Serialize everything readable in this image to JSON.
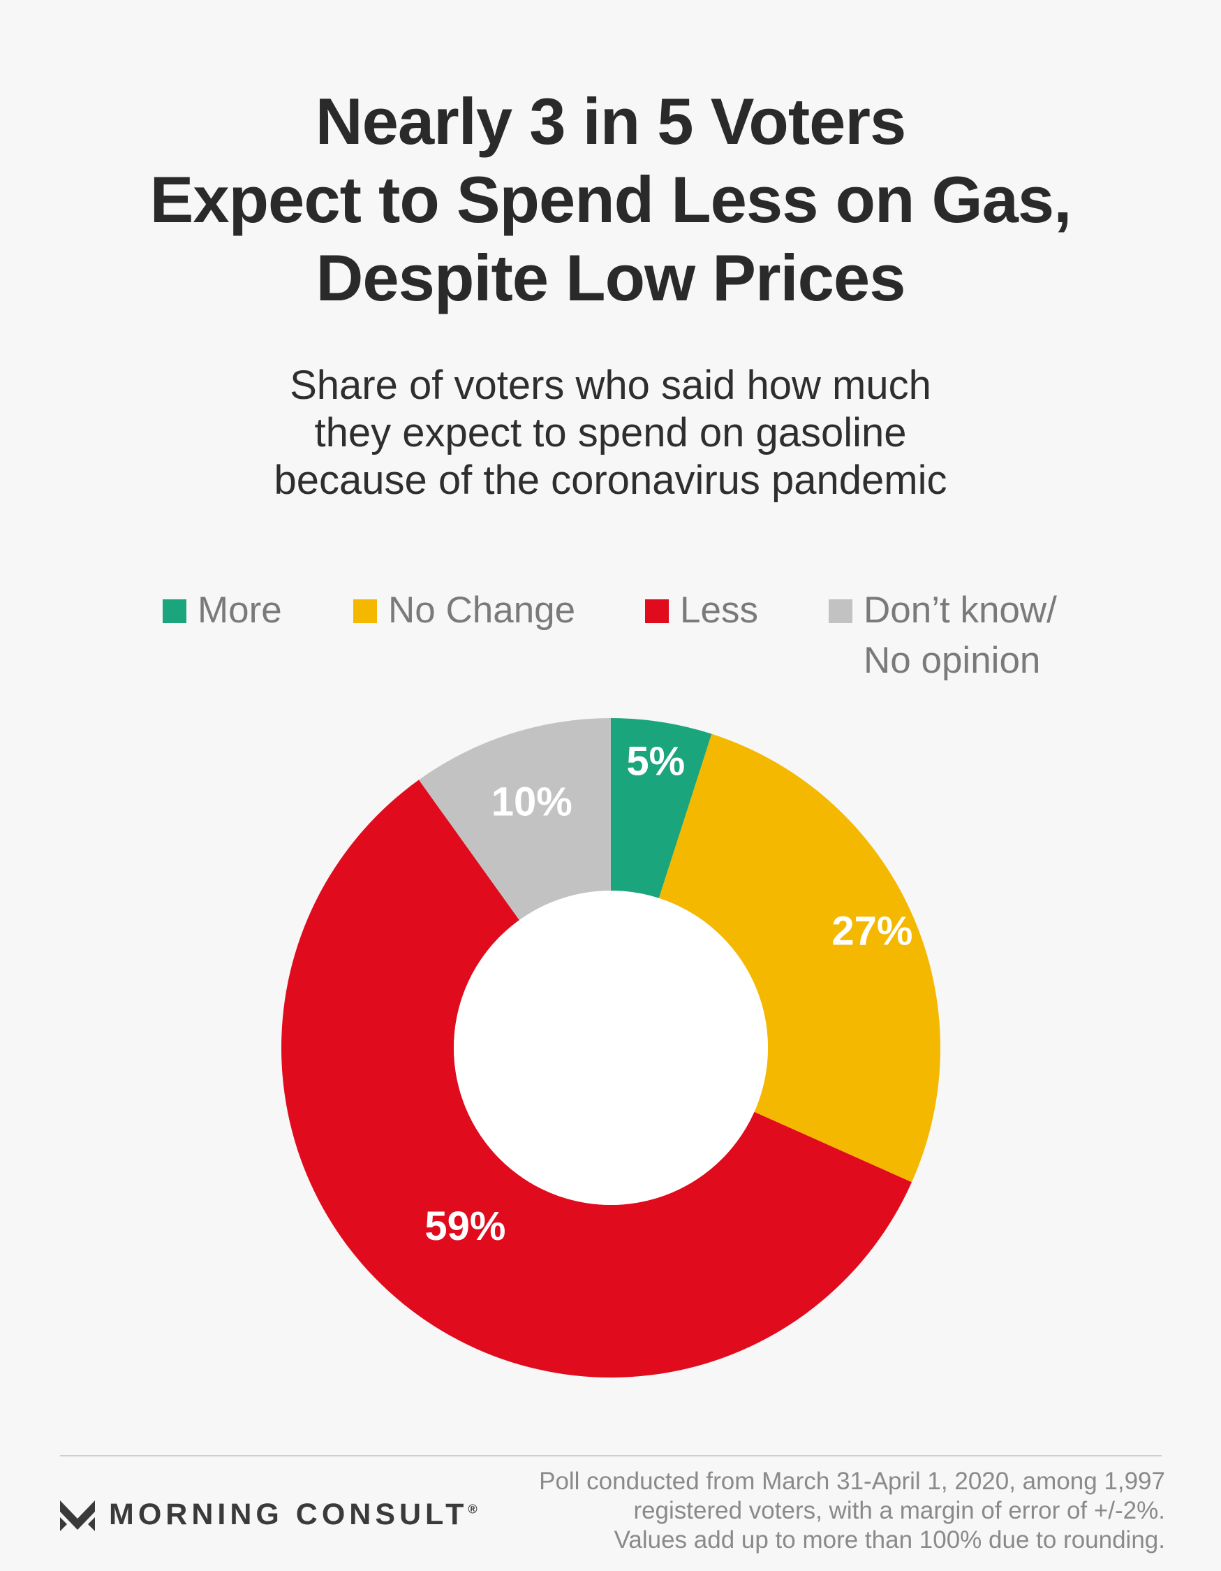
{
  "title_lines": [
    "Nearly 3 in 5 Voters",
    "Expect to Spend Less on Gas,",
    "Despite Low Prices"
  ],
  "subtitle_lines": [
    "Share of voters who said how much",
    "they expect to spend on gasoline",
    "because of the coronavirus pandemic"
  ],
  "legend": [
    {
      "lines": [
        "More"
      ],
      "color": "#1aa57c"
    },
    {
      "lines": [
        "No Change"
      ],
      "color": "#f5b800"
    },
    {
      "lines": [
        "Less"
      ],
      "color": "#e00b1c"
    },
    {
      "lines": [
        "Don’t know/",
        "No opinion"
      ],
      "color": "#c2c2c2"
    }
  ],
  "chart_data": {
    "type": "pie",
    "style": "donut",
    "categories": [
      "More",
      "No Change",
      "Less",
      "Don’t know/ No opinion"
    ],
    "values": [
      5,
      27,
      59,
      10
    ],
    "labels": [
      "5%",
      "27%",
      "59%",
      "10%"
    ],
    "colors": [
      "#1aa57c",
      "#f5b800",
      "#e00b1c",
      "#c2c2c2"
    ],
    "legend_position": "top"
  },
  "footer": {
    "brand": "MORNING CONSULT",
    "registered_mark": "®",
    "note_lines": [
      "Poll conducted from March 31-April 1, 2020, among 1,997",
      "registered voters, with a margin of error of +/-2%.",
      "Values add up to more than 100% due to rounding."
    ]
  }
}
